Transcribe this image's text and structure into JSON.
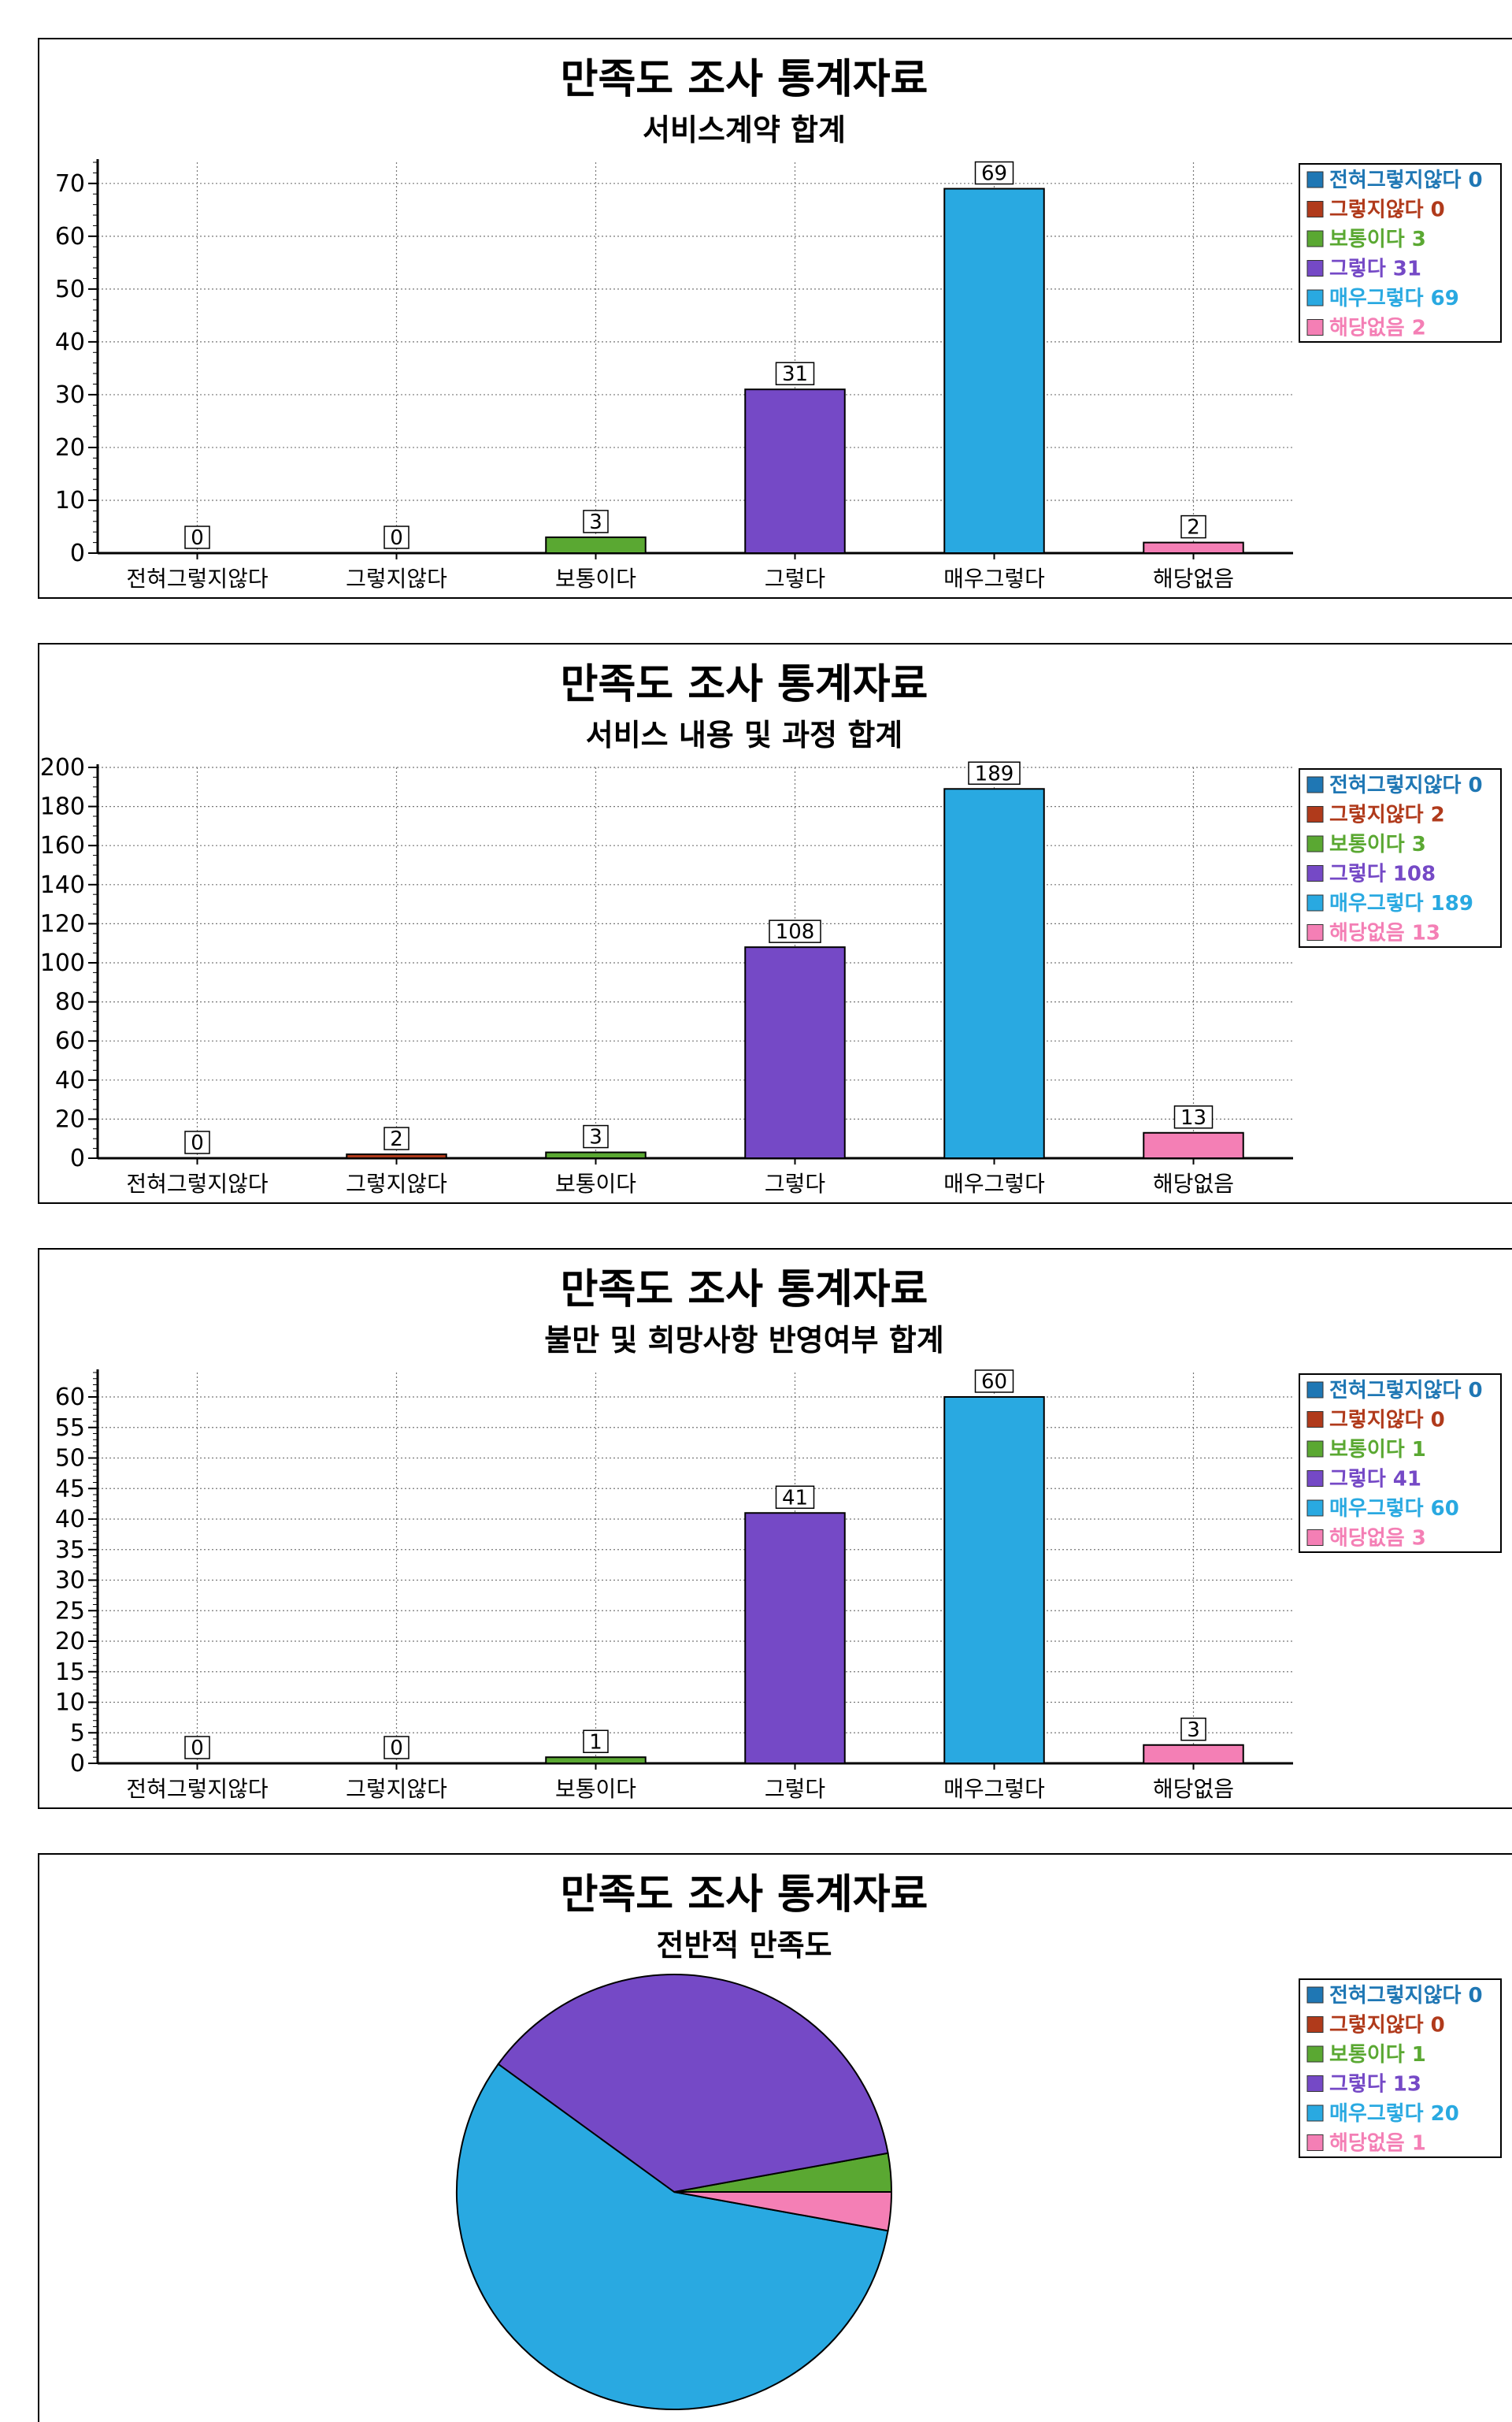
{
  "colors": {
    "전혀그렇지않다": "#1f77b4",
    "그렇지않다": "#b03a1b",
    "보통이다": "#5aa832",
    "그렇다": "#7549c6",
    "매우그렇다": "#29a9e1",
    "해당없음": "#f47fb5"
  },
  "chart_data": [
    {
      "type": "bar",
      "title": "만족도 조사 통계자료",
      "subtitle": "서비스계약 합계",
      "categories": [
        "전혀그렇지않다",
        "그렇지않다",
        "보통이다",
        "그렇다",
        "매우그렇다",
        "해당없음"
      ],
      "values": [
        0,
        0,
        3,
        31,
        69,
        2
      ],
      "ylim": [
        0,
        74
      ],
      "yticks": [
        0,
        10,
        20,
        30,
        40,
        50,
        60,
        70
      ],
      "minor_step": 2,
      "grid": true,
      "legend": [
        "전혀그렇지않다 0",
        "그렇지않다 0",
        "보통이다 3",
        "그렇다 31",
        "매우그렇다 69",
        "해당없음 2"
      ],
      "legend_position": "right"
    },
    {
      "type": "bar",
      "title": "만족도 조사 통계자료",
      "subtitle": "서비스 내용 및 과정 합계",
      "categories": [
        "전혀그렇지않다",
        "그렇지않다",
        "보통이다",
        "그렇다",
        "매우그렇다",
        "해당없음"
      ],
      "values": [
        0,
        2,
        3,
        108,
        189,
        13
      ],
      "ylim": [
        0,
        200
      ],
      "yticks": [
        0,
        20,
        40,
        60,
        80,
        100,
        120,
        140,
        160,
        180,
        200
      ],
      "minor_step": 5,
      "grid": true,
      "legend": [
        "전혀그렇지않다 0",
        "그렇지않다 2",
        "보통이다 3",
        "그렇다 108",
        "매우그렇다 189",
        "해당없음 13"
      ],
      "legend_position": "right"
    },
    {
      "type": "bar",
      "title": "만족도 조사 통계자료",
      "subtitle": "불만 및 희망사항 반영여부 합계",
      "categories": [
        "전혀그렇지않다",
        "그렇지않다",
        "보통이다",
        "그렇다",
        "매우그렇다",
        "해당없음"
      ],
      "values": [
        0,
        0,
        1,
        41,
        60,
        3
      ],
      "ylim": [
        0,
        64
      ],
      "yticks": [
        0,
        5,
        10,
        15,
        20,
        25,
        30,
        35,
        40,
        45,
        50,
        55,
        60
      ],
      "minor_step": 1,
      "grid": true,
      "legend": [
        "전혀그렇지않다 0",
        "그렇지않다 0",
        "보통이다 1",
        "그렇다 41",
        "매우그렇다 60",
        "해당없음 3"
      ],
      "legend_position": "right"
    },
    {
      "type": "pie",
      "title": "만족도 조사 통계자료",
      "subtitle": "전반적 만족도",
      "categories": [
        "전혀그렇지않다",
        "그렇지않다",
        "보통이다",
        "그렇다",
        "매우그렇다",
        "해당없음"
      ],
      "values": [
        0,
        0,
        1,
        13,
        20,
        1
      ],
      "legend": [
        "전혀그렇지않다 0",
        "그렇지않다 0",
        "보통이다 1",
        "그렇다 13",
        "매우그렇다 20",
        "해당없음 1"
      ],
      "legend_position": "right"
    }
  ]
}
